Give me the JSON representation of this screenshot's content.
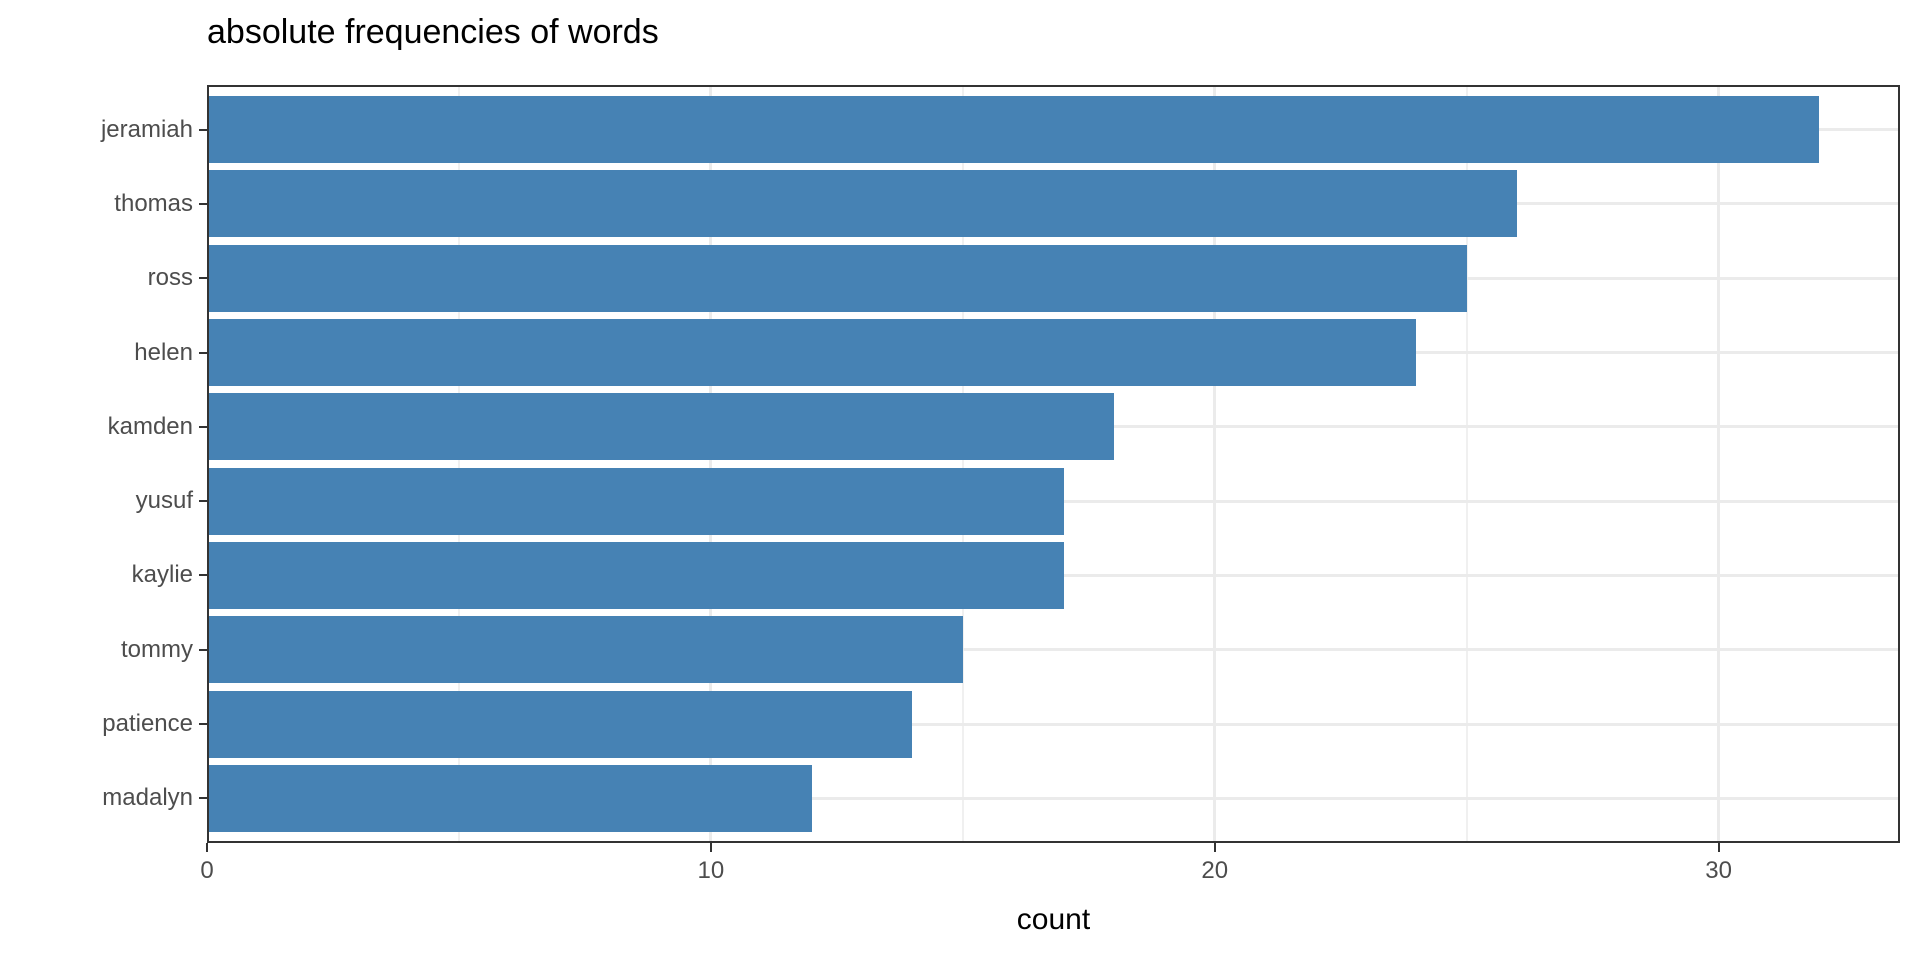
{
  "chart_data": {
    "type": "bar",
    "orientation": "horizontal",
    "title": "absolute frequencies of words",
    "xlabel": "count",
    "ylabel": "",
    "categories": [
      "jeramiah",
      "thomas",
      "ross",
      "helen",
      "kamden",
      "yusuf",
      "kaylie",
      "tommy",
      "patience",
      "madalyn"
    ],
    "values": [
      32,
      26,
      25,
      24,
      18,
      17,
      17,
      15,
      14,
      12
    ],
    "x_major_ticks": [
      0,
      10,
      20,
      30
    ],
    "x_minor_ticks": [
      5,
      15,
      25
    ],
    "xlim": [
      0,
      33.6
    ],
    "grid": true,
    "legend": false,
    "bar_width_fraction": 0.9,
    "colors": {
      "bar_fill": "#4682B4",
      "panel_border": "#333333",
      "grid_major": "#EBEBEB",
      "grid_minor": "#F0F0F0",
      "axis_text": "#4D4D4D",
      "tick_mark": "#333333",
      "title_text": "#000000"
    }
  }
}
